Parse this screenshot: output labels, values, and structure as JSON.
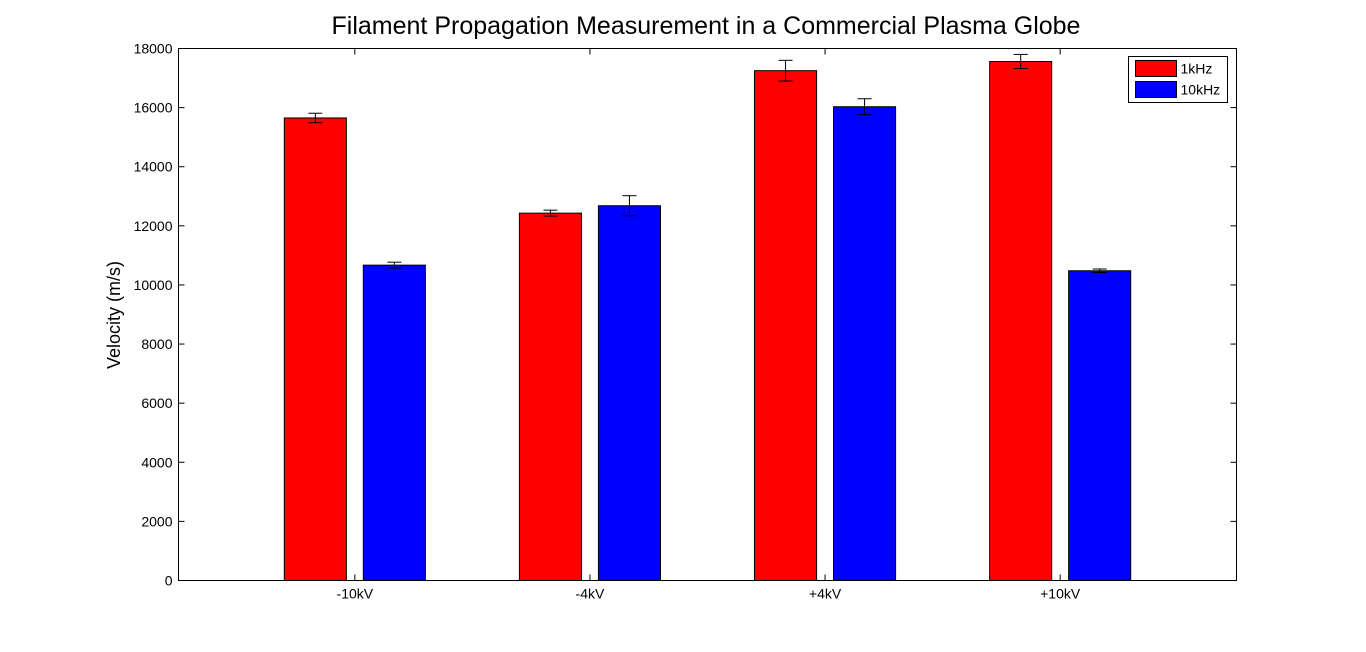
{
  "chart_data": {
    "type": "bar",
    "title": "Filament Propagation Measurement in a Commercial Plasma Globe",
    "xlabel": "",
    "ylabel": "Velocity (m/s)",
    "categories": [
      "-10kV",
      "-4kV",
      "+4kV",
      "+10kV"
    ],
    "series": [
      {
        "name": "1kHz",
        "color": "#ff0000",
        "values": [
          15650,
          12430,
          17250,
          17560
        ],
        "errors": [
          160,
          100,
          350,
          240
        ]
      },
      {
        "name": "10kHz",
        "color": "#0000ff",
        "values": [
          10670,
          12680,
          16030,
          10480
        ],
        "errors": [
          100,
          340,
          270,
          60
        ]
      }
    ],
    "ylim": [
      0,
      18000
    ],
    "yticks": [
      0,
      2000,
      4000,
      6000,
      8000,
      10000,
      12000,
      14000,
      16000,
      18000
    ],
    "grid": false,
    "legend_position": "top-right"
  }
}
